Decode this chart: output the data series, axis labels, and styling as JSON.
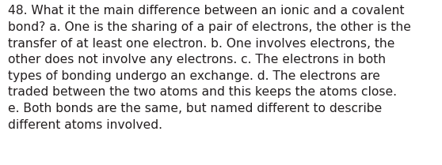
{
  "lines": [
    "48. What it the main difference between an ionic and a covalent",
    "bond? a. One is the sharing of a pair of electrons, the other is the",
    "transfer of at least one electron. b. One involves electrons, the",
    "other does not involve any electrons. c. The electrons in both",
    "types of bonding undergo an exchange. d. The electrons are",
    "traded between the two atoms and this keeps the atoms close.",
    "e. Both bonds are the same, but named different to describe",
    "different atoms involved."
  ],
  "background_color": "#ffffff",
  "text_color": "#231f20",
  "font_size": 11.2,
  "font_family": "DejaVu Sans",
  "fig_width": 5.58,
  "fig_height": 2.09,
  "dpi": 100
}
